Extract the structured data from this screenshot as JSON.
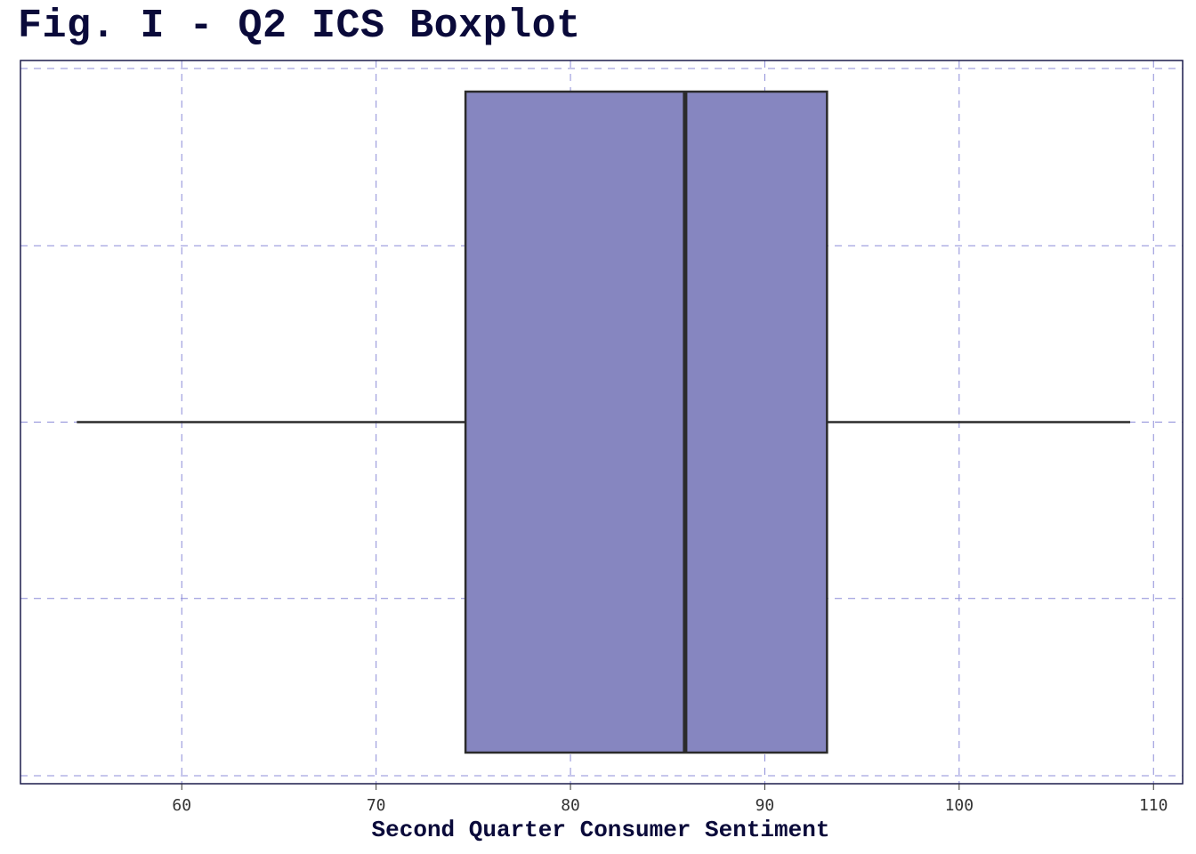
{
  "chart_data": {
    "type": "boxplot",
    "title": "Fig. I - Q2 ICS Boxplot",
    "xlabel": "Second Quarter Consumer Sentiment",
    "ylabel": "",
    "xlim": [
      51.7,
      111.5
    ],
    "xticks": [
      60,
      70,
      80,
      90,
      100,
      110
    ],
    "xtick_labels": [
      "60",
      "70",
      "80",
      "90",
      "100",
      "110"
    ],
    "orientation": "horizontal",
    "grid": true,
    "box": {
      "min": 54.6,
      "q1": 74.6,
      "median": 85.9,
      "q3": 93.2,
      "max": 108.8
    },
    "colors": {
      "box_fill": "#8686c0",
      "box_edge": "#2b2b2b",
      "grid": "#8c8cd8",
      "frame": "#1c1c4c",
      "title": "#0a0a3a"
    }
  }
}
